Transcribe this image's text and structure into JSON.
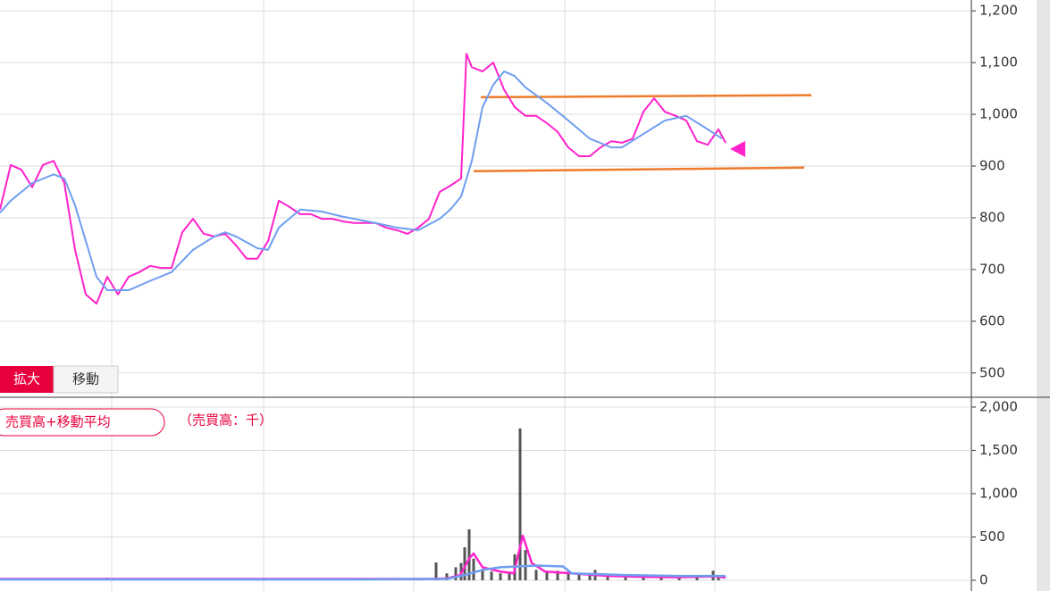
{
  "chart_data": [
    {
      "type": "line",
      "buttons": [
        "拡大",
        "移動"
      ],
      "xlim": [
        0,
        1087
      ],
      "ylim": [
        453,
        1221
      ],
      "yticks": [
        500,
        600,
        700,
        800,
        900,
        {
          "value": 1000,
          "label": "1,000"
        },
        {
          "value": 1100,
          "label": "1,100"
        },
        {
          "value": 1200,
          "label": "1,200"
        }
      ],
      "grid": true,
      "series": [
        {
          "color": "#ff22cc",
          "x": [
            0,
            12,
            24,
            36,
            48,
            60,
            72,
            84,
            96,
            108,
            120,
            132,
            144,
            156,
            168,
            180,
            192,
            204,
            216,
            228,
            240,
            252,
            264,
            276,
            288,
            300,
            312,
            324,
            336,
            348,
            360,
            372,
            384,
            396,
            408,
            420,
            432,
            444,
            456,
            468,
            480,
            492,
            504,
            516,
            522,
            528,
            540,
            552,
            564,
            576,
            588,
            600,
            612,
            624,
            636,
            648,
            660,
            672,
            684,
            696,
            708,
            720,
            732,
            744,
            756,
            768,
            780,
            792,
            804,
            812
          ],
          "values": [
            816,
            902,
            893,
            859,
            902,
            910,
            867,
            738,
            652,
            634,
            686,
            652,
            686,
            695,
            707,
            703,
            703,
            772,
            798,
            769,
            764,
            769,
            747,
            721,
            721,
            755,
            833,
            821,
            807,
            807,
            798,
            798,
            793,
            790,
            790,
            790,
            781,
            776,
            769,
            781,
            798,
            850,
            862,
            876,
            1117,
            1091,
            1083,
            1100,
            1048,
            1014,
            997,
            997,
            983,
            966,
            936,
            919,
            919,
            936,
            948,
            945,
            953,
            1005,
            1031,
            1005,
            997,
            988,
            948,
            941,
            971,
            945
          ]
        },
        {
          "color": "#6f9ef0",
          "x": [
            0,
            12,
            36,
            60,
            72,
            84,
            96,
            108,
            120,
            144,
            168,
            192,
            216,
            240,
            252,
            264,
            288,
            300,
            312,
            336,
            360,
            384,
            420,
            444,
            468,
            492,
            504,
            516,
            528,
            540,
            552,
            564,
            576,
            588,
            612,
            636,
            660,
            684,
            696,
            720,
            744,
            768,
            792,
            808
          ],
          "values": [
            810,
            833,
            867,
            884,
            876,
            824,
            755,
            686,
            660,
            660,
            678,
            695,
            738,
            764,
            772,
            764,
            741,
            738,
            781,
            816,
            812,
            802,
            790,
            781,
            776,
            798,
            816,
            841,
            910,
            1014,
            1057,
            1083,
            1074,
            1052,
            1022,
            988,
            953,
            936,
            936,
            962,
            988,
            997,
            971,
            953
          ]
        }
      ],
      "lines": [
        {
          "color": "#f07a2a",
          "x": [
            538,
            908
          ],
          "values": [
            1033,
            1037
          ]
        },
        {
          "color": "#f07a2a",
          "x": [
            530,
            900
          ],
          "values": [
            890,
            897
          ]
        }
      ],
      "marker": {
        "color": "#ff22cc",
        "x": 826,
        "value": 933
      }
    },
    {
      "type": "bar",
      "title": "売買高+移動平均",
      "subtitle": "（売買高：千）",
      "xlim": [
        0,
        1087
      ],
      "ylim": [
        -124,
        2113
      ],
      "yticks": [
        0,
        500,
        {
          "value": 1000,
          "label": "1,000"
        },
        {
          "value": 1500,
          "label": "1,500"
        },
        {
          "value": 2000,
          "label": "2,000"
        }
      ],
      "grid": true,
      "color": "#555555",
      "x": [
        50,
        120,
        200,
        280,
        360,
        420,
        470,
        488,
        500,
        510,
        516,
        520,
        525,
        530,
        540,
        550,
        560,
        570,
        576,
        582,
        588,
        600,
        612,
        624,
        636,
        648,
        660,
        666,
        680,
        700,
        720,
        740,
        760,
        780,
        798,
        804
      ],
      "values": [
        25,
        30,
        15,
        15,
        15,
        15,
        20,
        206,
        80,
        150,
        200,
        380,
        588,
        250,
        120,
        100,
        80,
        100,
        300,
        1753,
        350,
        120,
        100,
        110,
        100,
        80,
        60,
        120,
        60,
        50,
        40,
        50,
        40,
        50,
        110,
        60
      ],
      "series": [
        {
          "color": "#ff22cc",
          "x": [
            0,
            100,
            200,
            300,
            400,
            480,
            500,
            515,
            525,
            530,
            540,
            560,
            575,
            585,
            595,
            610,
            640,
            680,
            720,
            760,
            800,
            812
          ],
          "values": [
            15,
            15,
            15,
            15,
            15,
            15,
            20,
            60,
            250,
            309,
            150,
            100,
            80,
            515,
            200,
            100,
            80,
            50,
            40,
            35,
            45,
            30
          ]
        },
        {
          "color": "#6f9ef0",
          "x": [
            0,
            200,
            400,
            500,
            520,
            540,
            560,
            580,
            600,
            630,
            640,
            700,
            760,
            812
          ],
          "values": [
            10,
            10,
            10,
            15,
            60,
            120,
            150,
            160,
            170,
            160,
            80,
            60,
            50,
            50
          ]
        }
      ]
    }
  ]
}
